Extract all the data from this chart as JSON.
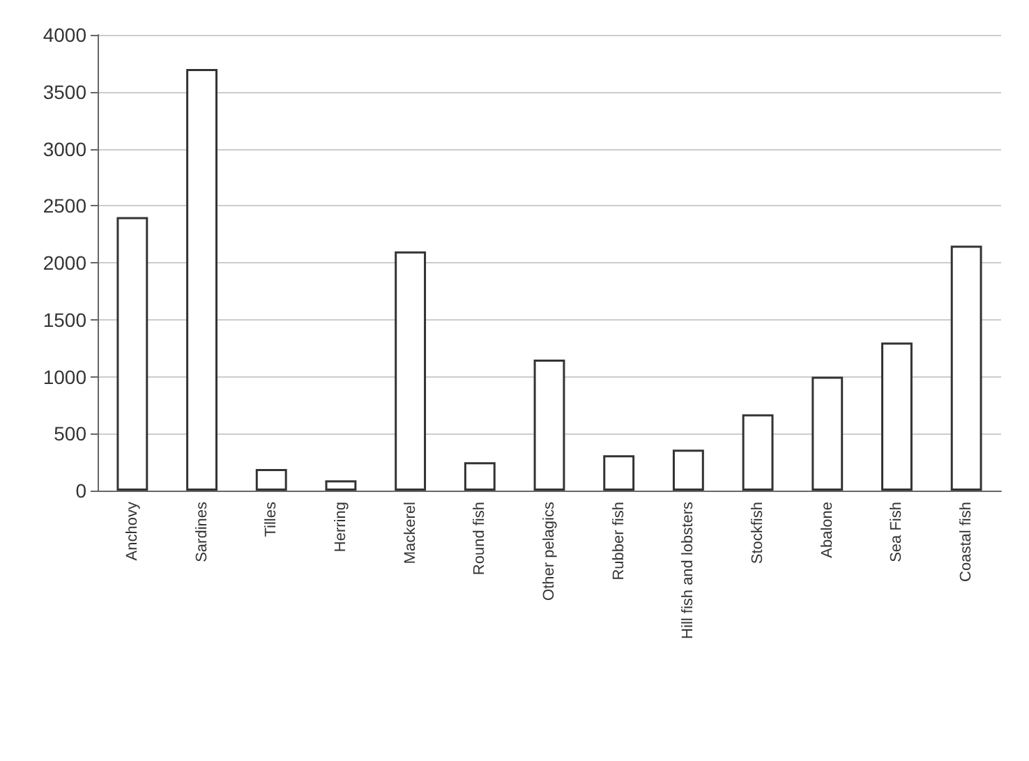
{
  "chart_data": {
    "type": "bar",
    "categories": [
      "Anchovy",
      "Sardines",
      "Tilles",
      "Herring",
      "Mackerel",
      "Round fish",
      "Other pelagics",
      "Rubber fish",
      "Hill fish and lobsters",
      "Stockfish",
      "Abalone",
      "Sea Fish",
      "Coastal fish"
    ],
    "values": [
      2400,
      3700,
      190,
      90,
      2100,
      250,
      1150,
      310,
      360,
      670,
      1000,
      1300,
      2150
    ],
    "color": "#ffffff",
    "ylim": [
      0,
      4000
    ],
    "yticks": [
      0,
      500,
      1000,
      1500,
      2000,
      2500,
      3000,
      3500,
      4000
    ],
    "grid": "y"
  }
}
